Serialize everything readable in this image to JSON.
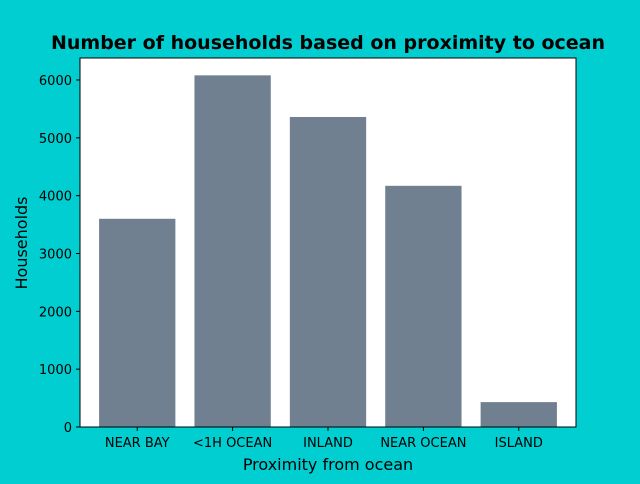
{
  "colors": {
    "background": "#00CED1",
    "plot_area": "#FFFFFF",
    "bar": "#708090",
    "axis": "#000000"
  },
  "chart_data": {
    "type": "bar",
    "title": "Number of households based on proximity to ocean",
    "xlabel": "Proximity from ocean",
    "ylabel": "Households",
    "categories": [
      "NEAR BAY",
      "<1H OCEAN",
      "INLAND",
      "NEAR OCEAN",
      "ISLAND"
    ],
    "values": [
      3600,
      6080,
      5360,
      4170,
      430
    ],
    "ylim": [
      0,
      6380
    ],
    "yticks": [
      0,
      1000,
      2000,
      3000,
      4000,
      5000,
      6000
    ],
    "grid": false,
    "legend": null
  }
}
